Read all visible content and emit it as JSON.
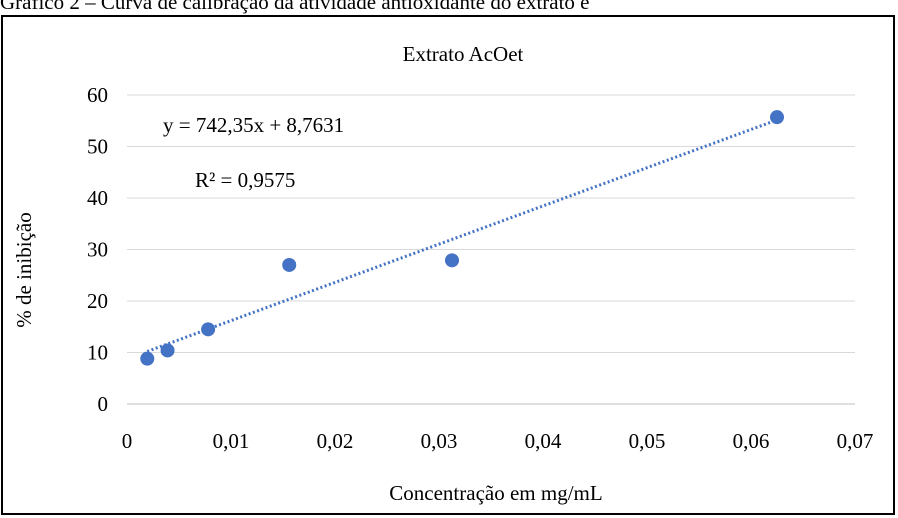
{
  "caption": "Gráfico 2 – Curva de calibração da atividade antioxidante do extrato e",
  "chart_data": {
    "type": "scatter",
    "title": "Extrato AcOet",
    "xlabel": "Concentração em mg/mL",
    "ylabel": "% de inibição",
    "xlim": [
      0,
      0.07
    ],
    "ylim": [
      0,
      60
    ],
    "x_ticks": [
      0,
      0.01,
      0.02,
      0.03,
      0.04,
      0.05,
      0.06,
      0.07
    ],
    "x_tick_labels": [
      "0",
      "0,01",
      "0,02",
      "0,03",
      "0,04",
      "0,05",
      "0,06",
      "0,07"
    ],
    "y_ticks": [
      0,
      10,
      20,
      30,
      40,
      50,
      60
    ],
    "y_tick_labels": [
      "0",
      "10",
      "20",
      "30",
      "40",
      "50",
      "60"
    ],
    "grid": "horizontal",
    "series": [
      {
        "x": [
          0.00195,
          0.0039,
          0.0078,
          0.0156,
          0.03125,
          0.0625
        ],
        "y": [
          8.8,
          10.4,
          14.5,
          27.0,
          27.9,
          55.7
        ]
      }
    ],
    "trendline": {
      "slope": 742.35,
      "intercept": 8.7631,
      "x_range": [
        0.00195,
        0.0625
      ],
      "equation": "y = 742,35x + 8,7631",
      "r2": "R² = 0,9575"
    },
    "colors": {
      "marker": "#4472C4",
      "trendline": "#4472C4",
      "grid": "#D9D9D9"
    }
  }
}
